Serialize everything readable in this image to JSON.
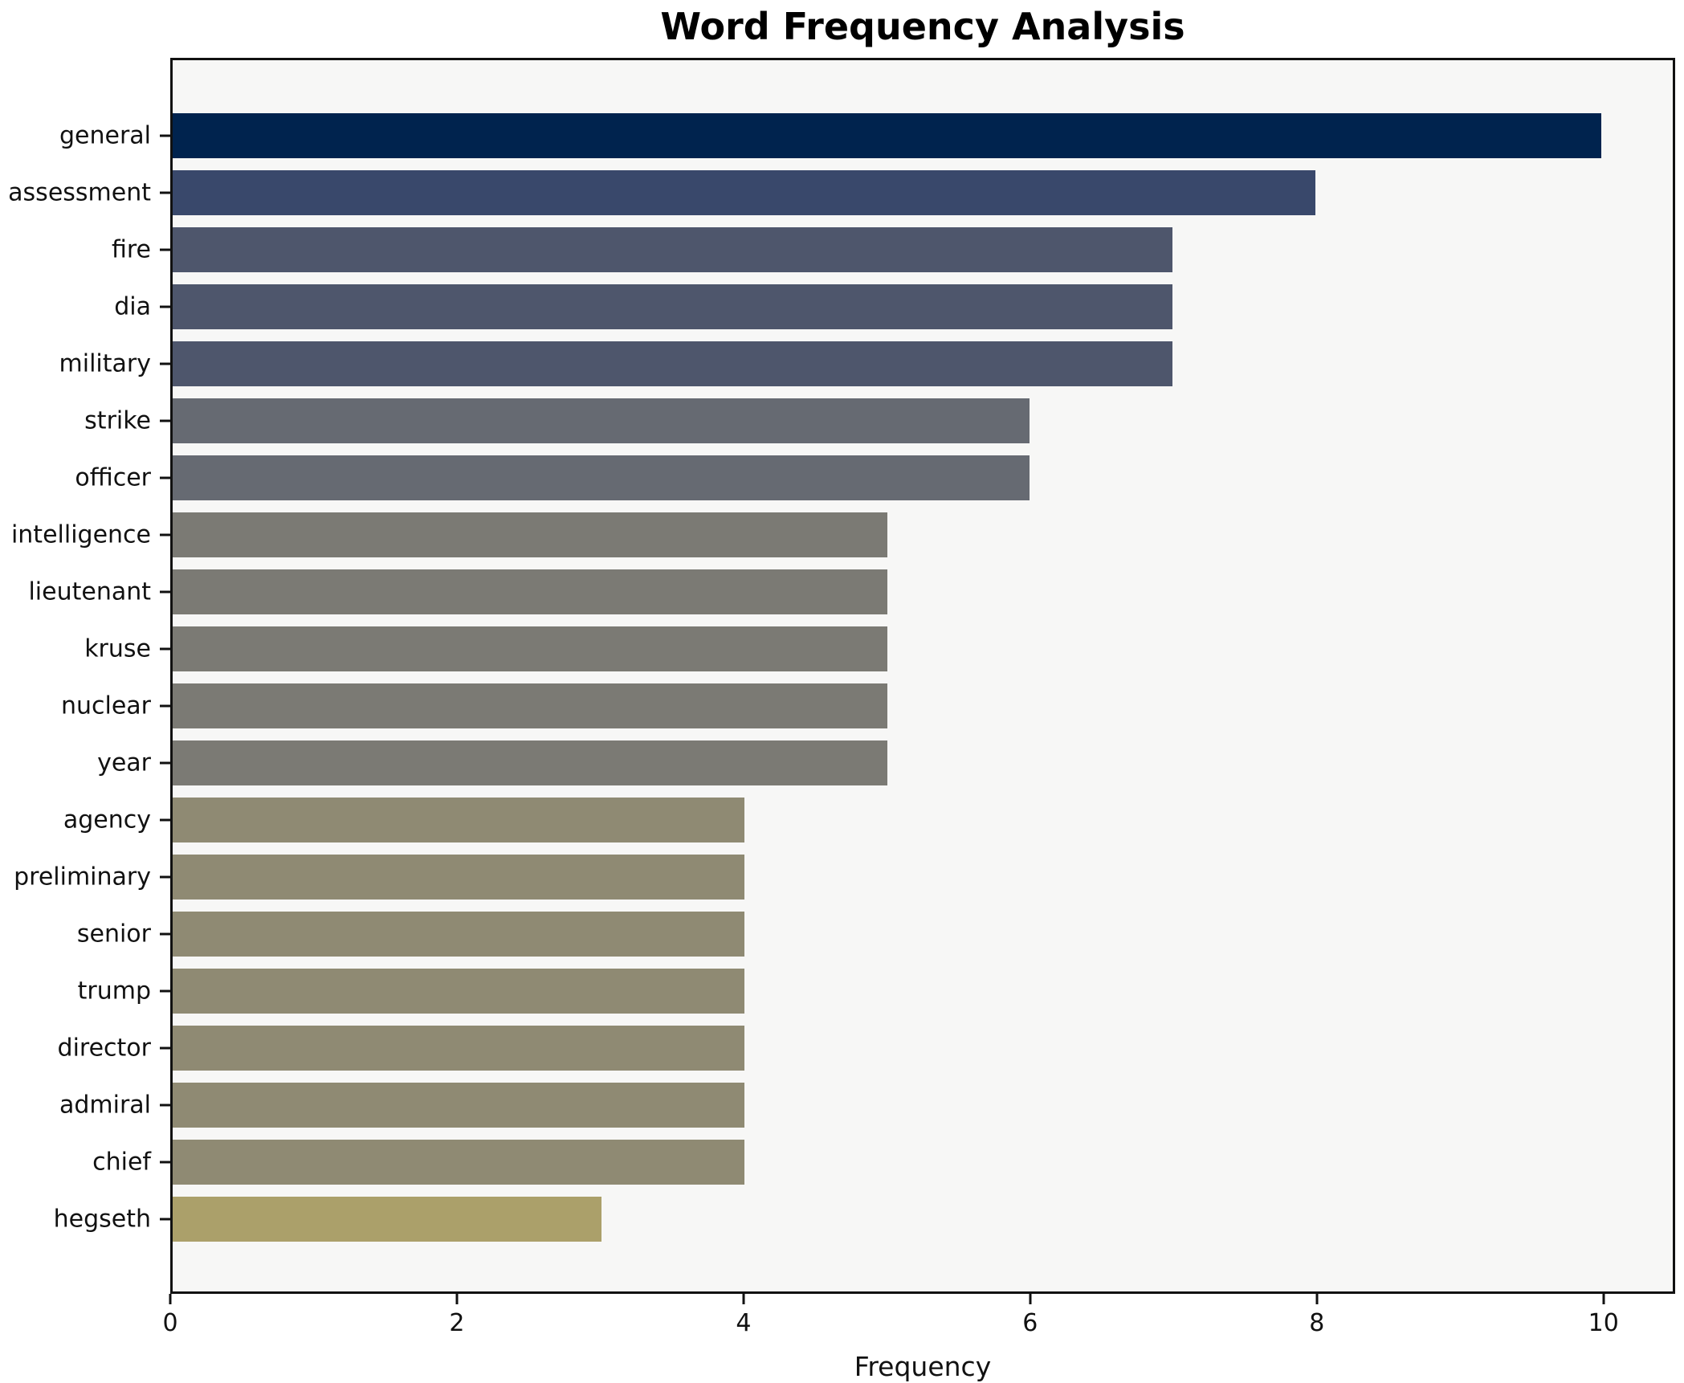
{
  "title": "Word Frequency Analysis",
  "chart_data": {
    "type": "bar",
    "orientation": "horizontal",
    "title": "Word Frequency Analysis",
    "xlabel": "Frequency",
    "ylabel": "",
    "categories": [
      "general",
      "assessment",
      "fire",
      "dia",
      "military",
      "strike",
      "officer",
      "intelligence",
      "lieutenant",
      "kruse",
      "nuclear",
      "year",
      "agency",
      "preliminary",
      "senior",
      "trump",
      "director",
      "admiral",
      "chief",
      "hegseth"
    ],
    "values": [
      10,
      8,
      7,
      7,
      7,
      6,
      6,
      5,
      5,
      5,
      5,
      5,
      4,
      4,
      4,
      4,
      4,
      4,
      4,
      3
    ],
    "bar_colors": [
      "#00234e",
      "#39486b",
      "#4e566c",
      "#4e566c",
      "#4e566c",
      "#666a72",
      "#666a72",
      "#7b7a74",
      "#7b7a74",
      "#7b7a74",
      "#7b7a74",
      "#7b7a74",
      "#8f8a73",
      "#8f8a73",
      "#8f8a73",
      "#8f8a73",
      "#8f8a73",
      "#8f8a73",
      "#8f8a73",
      "#aba06a"
    ],
    "x_ticks": [
      0,
      2,
      4,
      6,
      8,
      10
    ],
    "xlim": [
      0,
      10.5
    ],
    "grid": false,
    "legend": null,
    "plot_bg": "#f7f7f6",
    "fig_bg": "#ffffff",
    "spine_color": "#111111"
  }
}
